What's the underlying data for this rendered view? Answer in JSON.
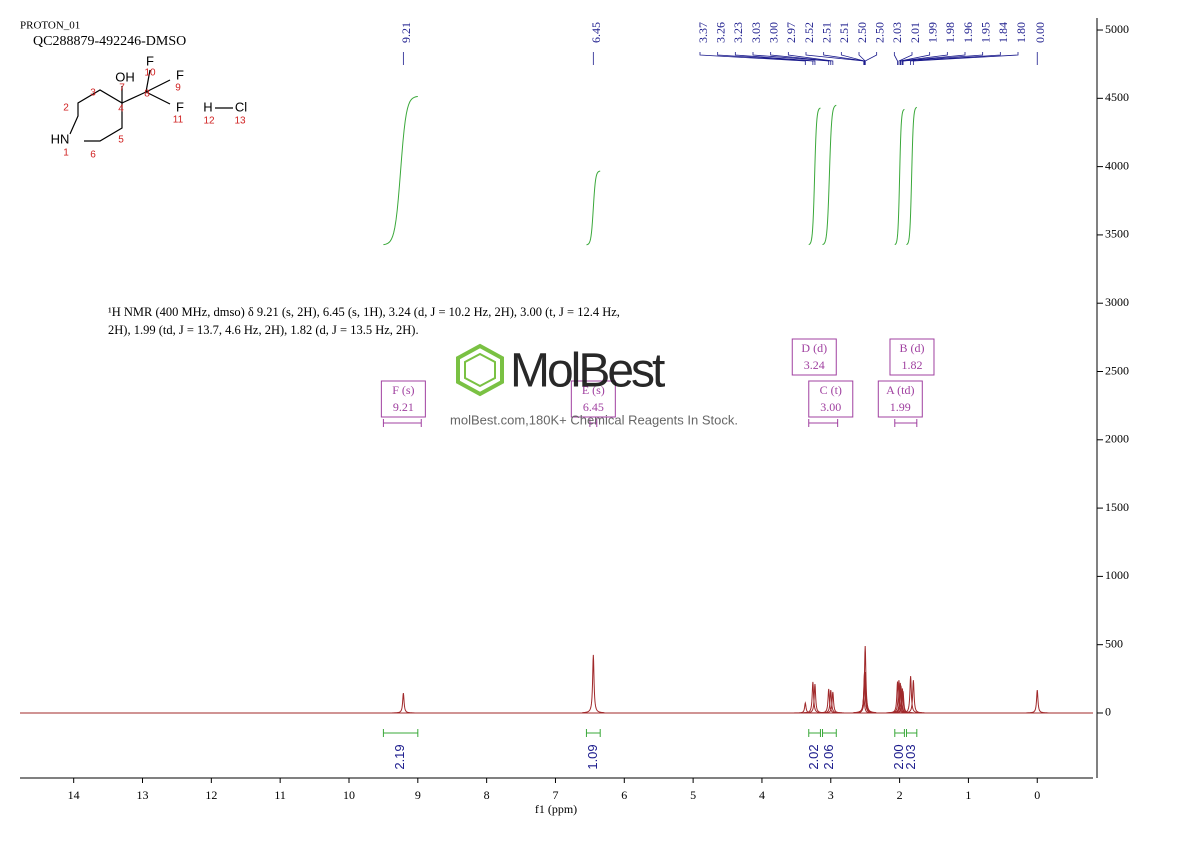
{
  "chart_data": {
    "type": "nmr",
    "title": "PROTON_01",
    "subtitle": "QC288879-492246-DMSO",
    "xlabel": "f1 (ppm)",
    "xlim": [
      14.78,
      -0.81
    ],
    "xticks": [
      14,
      13,
      12,
      11,
      10,
      9,
      8,
      7,
      6,
      5,
      4,
      3,
      2,
      1,
      0
    ],
    "ylim": [
      -476,
      5088
    ],
    "yticks": [
      0,
      500,
      1000,
      1500,
      2000,
      2500,
      3000,
      3500,
      4000,
      4500,
      5000
    ],
    "color": "#a0282a",
    "peaks": {
      "x": [
        9.21,
        6.45,
        3.37,
        3.26,
        3.23,
        3.03,
        {
          "value": 3.0,
          "label": "3.00"
        },
        2.97,
        2.52,
        2.51,
        2.51,
        {
          "value": 2.5,
          "label": "2.50"
        },
        {
          "value": 2.5,
          "label": "2.50"
        },
        2.03,
        2.01,
        1.99,
        1.98,
        1.96,
        1.95,
        1.84,
        {
          "value": 1.8,
          "label": "1.80"
        },
        {
          "value": 0,
          "label": "0.00"
        }
      ],
      "values": [
        146,
        425,
        73,
        227,
        212,
        176,
        168,
        154,
        120,
        260,
        300,
        490,
        300,
        230,
        240,
        220,
        200,
        180,
        160,
        270,
        240,
        168
      ]
    },
    "integrals": {
      "ranges": [
        [
          9.5,
          9.0
        ],
        [
          6.55,
          6.35
        ],
        [
          3.32,
          3.15
        ],
        [
          3.12,
          2.92
        ],
        [
          2.07,
          1.93
        ],
        [
          1.9,
          1.75
        ]
      ],
      "values": [
        2.19,
        1.09,
        2.02,
        2.06,
        {
          "value": 2.0,
          "label": "2.00"
        },
        2.03
      ]
    },
    "multiplets": [
      {
        "label": "F (s)",
        "shift": 9.21
      },
      {
        "label": "E (s)",
        "shift": 6.45
      },
      {
        "label": "D (d)",
        "shift": 3.24
      },
      {
        "label": "C (t)",
        "shift": {
          "value": 3.0,
          "label": "3.00"
        }
      },
      {
        "label": "B (d)",
        "shift": 1.82
      },
      {
        "label": "A (td)",
        "shift": 1.99
      }
    ],
    "nmr_text": [
      "¹H NMR (400 MHz, dmso) δ 9.21 (s, 2H), 6.45 (s, 1H), 3.24 (d, J = 10.2 Hz, 2H), 3.00 (t, J = 12.4 Hz,",
      "2H), 1.99 (td, J = 13.7, 4.6 Hz, 2H), 1.82 (d, J = 13.5 Hz, 2H)."
    ],
    "structure": {
      "atoms": [
        "F",
        "OH",
        "F",
        "F",
        "HN",
        "H",
        "Cl"
      ],
      "numbers": [
        "1",
        "2",
        "3",
        "4",
        "5",
        "6",
        "7",
        "8",
        "9",
        "10",
        "11",
        "12",
        "13"
      ]
    },
    "watermark": {
      "logo": "MolBest",
      "text": "molBest.com,180K+ Chemical Reagents In Stock."
    }
  }
}
